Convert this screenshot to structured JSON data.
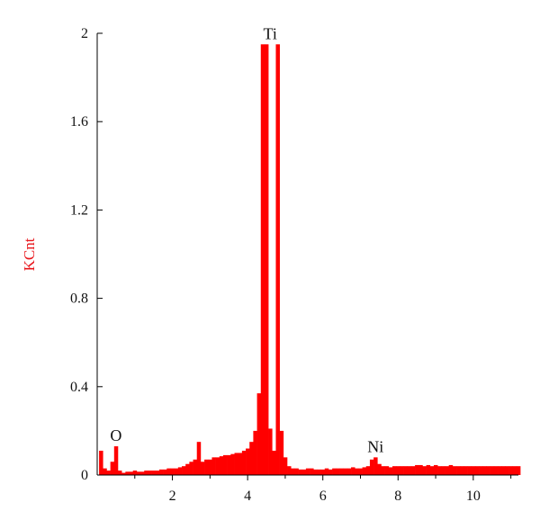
{
  "chart_data": {
    "type": "bar",
    "title": "",
    "xlabel": "",
    "ylabel": "KCnt",
    "xlim": [
      0,
      11.2
    ],
    "ylim": [
      0,
      2
    ],
    "x_ticks": [
      2,
      4,
      6,
      8,
      10
    ],
    "x_tick_labels": [
      "2",
      "4",
      "6",
      "8",
      "10"
    ],
    "y_ticks": [
      0,
      0.4,
      0.8,
      1.2,
      1.6,
      2
    ],
    "y_tick_labels": [
      "0",
      "0.4",
      "0.8",
      "1.2",
      "1.6",
      "2"
    ],
    "grid": false,
    "colors": {
      "spectrum": "#ff0000",
      "ylabel": "#e8141a",
      "axis": "#000000"
    },
    "x": [
      0.1,
      0.2,
      0.3,
      0.4,
      0.5,
      0.6,
      0.7,
      0.8,
      0.9,
      1.0,
      1.1,
      1.2,
      1.3,
      1.4,
      1.5,
      1.6,
      1.7,
      1.8,
      1.9,
      2.0,
      2.1,
      2.2,
      2.3,
      2.4,
      2.5,
      2.6,
      2.7,
      2.8,
      2.9,
      3.0,
      3.1,
      3.2,
      3.3,
      3.4,
      3.5,
      3.6,
      3.7,
      3.8,
      3.9,
      4.0,
      4.1,
      4.2,
      4.3,
      4.4,
      4.5,
      4.6,
      4.7,
      4.8,
      4.9,
      5.0,
      5.1,
      5.2,
      5.3,
      5.4,
      5.5,
      5.6,
      5.7,
      5.8,
      5.9,
      6.0,
      6.1,
      6.2,
      6.3,
      6.4,
      6.5,
      6.6,
      6.7,
      6.8,
      6.9,
      7.0,
      7.1,
      7.2,
      7.3,
      7.4,
      7.5,
      7.6,
      7.7,
      7.8,
      7.9,
      8.0,
      8.1,
      8.2,
      8.3,
      8.4,
      8.5,
      8.6,
      8.7,
      8.8,
      8.9,
      9.0,
      9.1,
      9.2,
      9.3,
      9.4,
      9.5,
      9.6,
      9.7,
      9.8,
      9.9,
      10.0,
      10.1,
      10.2,
      10.3,
      10.4,
      10.5,
      10.6,
      10.7,
      10.8,
      10.9,
      11.0,
      11.1,
      11.2
    ],
    "values": [
      0.11,
      0.03,
      0.02,
      0.06,
      0.13,
      0.02,
      0.01,
      0.015,
      0.015,
      0.02,
      0.015,
      0.015,
      0.02,
      0.02,
      0.02,
      0.02,
      0.025,
      0.025,
      0.03,
      0.03,
      0.03,
      0.035,
      0.04,
      0.05,
      0.06,
      0.07,
      0.15,
      0.06,
      0.07,
      0.07,
      0.08,
      0.08,
      0.085,
      0.09,
      0.09,
      0.095,
      0.1,
      0.1,
      0.11,
      0.12,
      0.15,
      0.2,
      0.37,
      1.95,
      1.95,
      0.21,
      0.11,
      1.95,
      0.2,
      0.08,
      0.04,
      0.03,
      0.03,
      0.025,
      0.025,
      0.03,
      0.03,
      0.025,
      0.025,
      0.025,
      0.03,
      0.025,
      0.03,
      0.03,
      0.03,
      0.03,
      0.03,
      0.035,
      0.03,
      0.03,
      0.035,
      0.04,
      0.07,
      0.08,
      0.05,
      0.04,
      0.04,
      0.035,
      0.04,
      0.04,
      0.04,
      0.04,
      0.04,
      0.04,
      0.045,
      0.045,
      0.04,
      0.045,
      0.04,
      0.045,
      0.04,
      0.04,
      0.04,
      0.045,
      0.04,
      0.04,
      0.04,
      0.04,
      0.04,
      0.04,
      0.04,
      0.04,
      0.04,
      0.04,
      0.04,
      0.04,
      0.04,
      0.04,
      0.04,
      0.04,
      0.04,
      0.04
    ],
    "annotations": [
      {
        "text": "Ti",
        "x": 4.6,
        "y": 1.95
      },
      {
        "text": "O",
        "x": 0.5,
        "y": 0.13
      },
      {
        "text": "Ni",
        "x": 7.4,
        "y": 0.08
      }
    ]
  }
}
